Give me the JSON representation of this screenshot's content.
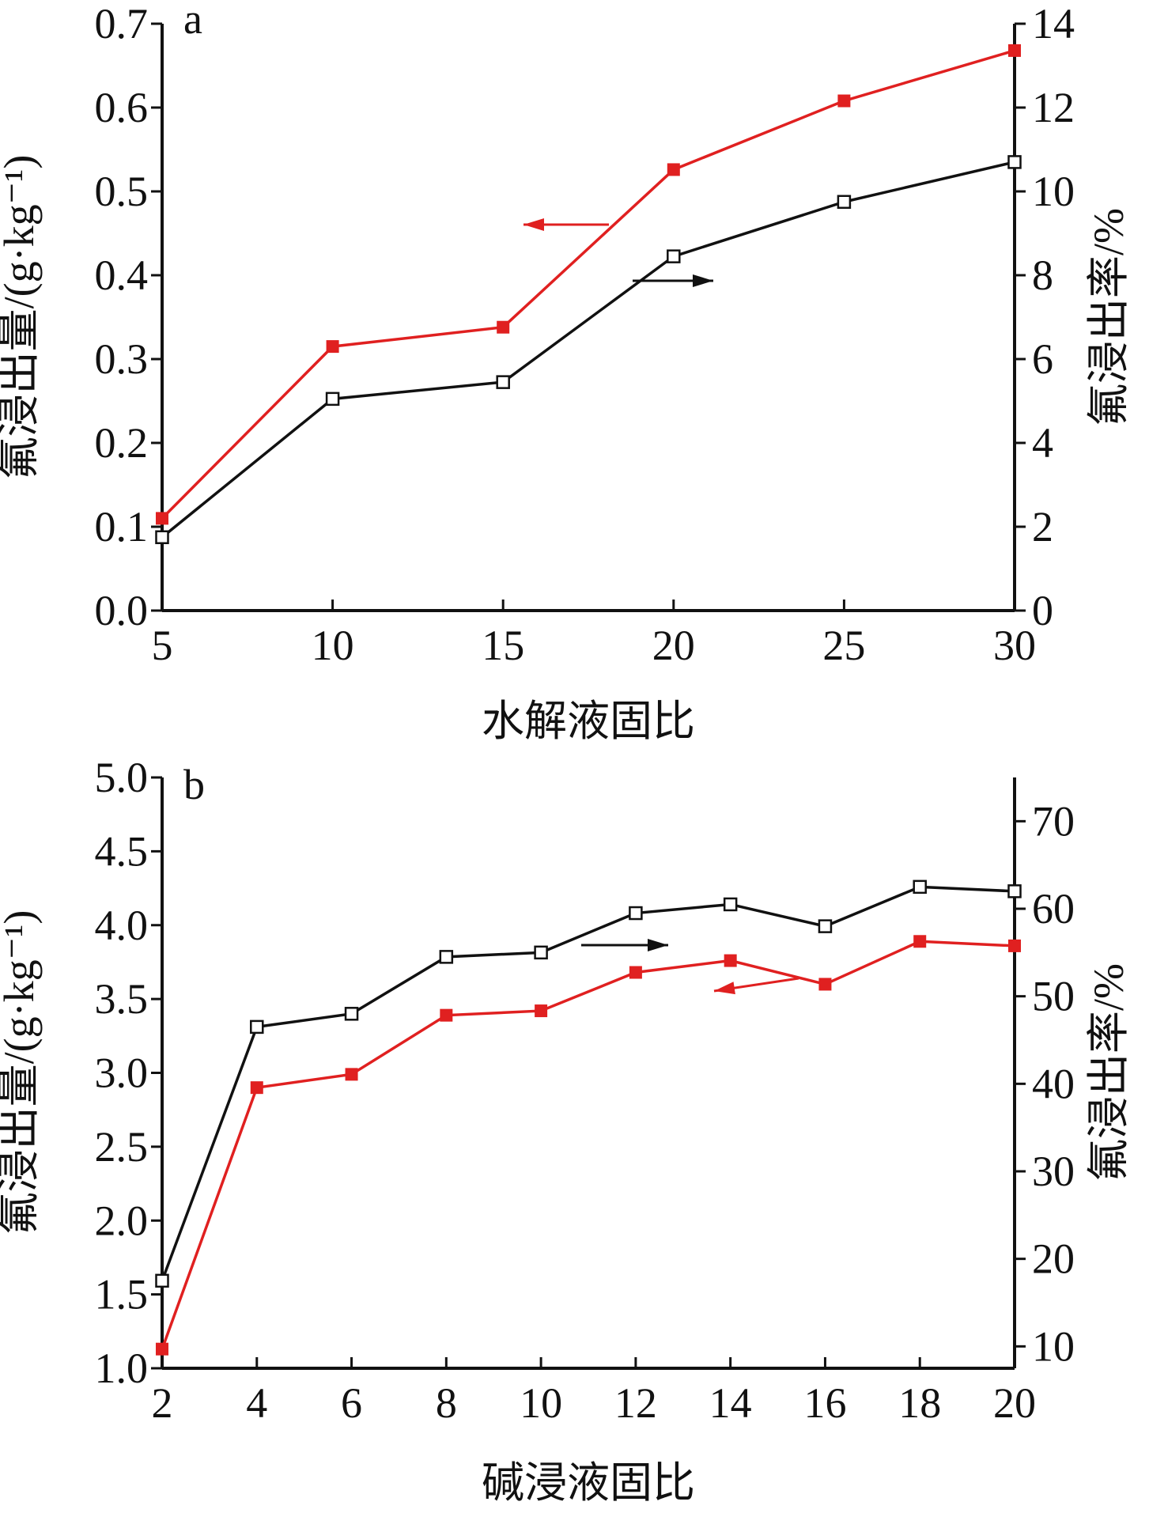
{
  "chart_data": [
    {
      "type": "line",
      "panel_label": "a",
      "xlabel": "水解液固比",
      "ylabel": "氟浸出量/(g·kg⁻¹)",
      "y2label": "氟浸出率/%",
      "x": [
        5,
        10,
        15,
        20,
        25,
        30
      ],
      "xlim": [
        5,
        30
      ],
      "xticks": [
        "5",
        "10",
        "15",
        "20",
        "25",
        "30"
      ],
      "ylim": [
        0,
        0.7
      ],
      "yticks": [
        "0.0",
        "0.1",
        "0.2",
        "0.3",
        "0.4",
        "0.5",
        "0.6",
        "0.7"
      ],
      "y2lim": [
        0,
        14
      ],
      "y2ticks": [
        "0",
        "2",
        "4",
        "6",
        "8",
        "10",
        "12",
        "14"
      ],
      "series": [
        {
          "axis": "left",
          "marker": "filled-square",
          "color": "#e02020",
          "values": [
            0.11,
            0.315,
            0.338,
            0.526,
            0.608,
            0.668
          ]
        },
        {
          "axis": "right",
          "marker": "open-square",
          "color": "#111111",
          "values": [
            1.75,
            5.05,
            5.45,
            8.45,
            9.75,
            10.7
          ]
        }
      ],
      "grid": false
    },
    {
      "type": "line",
      "panel_label": "b",
      "xlabel": "碱浸液固比",
      "ylabel": "氟浸出量/(g·kg⁻¹)",
      "y2label": "氟浸出率/%",
      "x": [
        2,
        4,
        6,
        8,
        10,
        12,
        14,
        16,
        18,
        20
      ],
      "xlim": [
        2,
        20
      ],
      "xticks": [
        "2",
        "4",
        "6",
        "8",
        "10",
        "12",
        "14",
        "16",
        "18",
        "20"
      ],
      "ylim": [
        1.0,
        5.0
      ],
      "yticks": [
        "1.0",
        "1.5",
        "2.0",
        "2.5",
        "3.0",
        "3.5",
        "4.0",
        "4.5",
        "5.0"
      ],
      "y2lim": [
        7.5,
        75
      ],
      "y2ticks": [
        "10",
        "20",
        "30",
        "40",
        "50",
        "60",
        "70"
      ],
      "series": [
        {
          "axis": "left",
          "marker": "filled-square",
          "color": "#e02020",
          "values": [
            1.13,
            2.9,
            2.99,
            3.39,
            3.42,
            3.68,
            3.76,
            3.6,
            3.89,
            3.86
          ]
        },
        {
          "axis": "right",
          "marker": "open-square",
          "color": "#111111",
          "values": [
            17.5,
            46.5,
            48.0,
            54.5,
            55.0,
            59.5,
            60.5,
            58.0,
            62.5,
            62.0
          ]
        }
      ],
      "grid": false
    }
  ]
}
